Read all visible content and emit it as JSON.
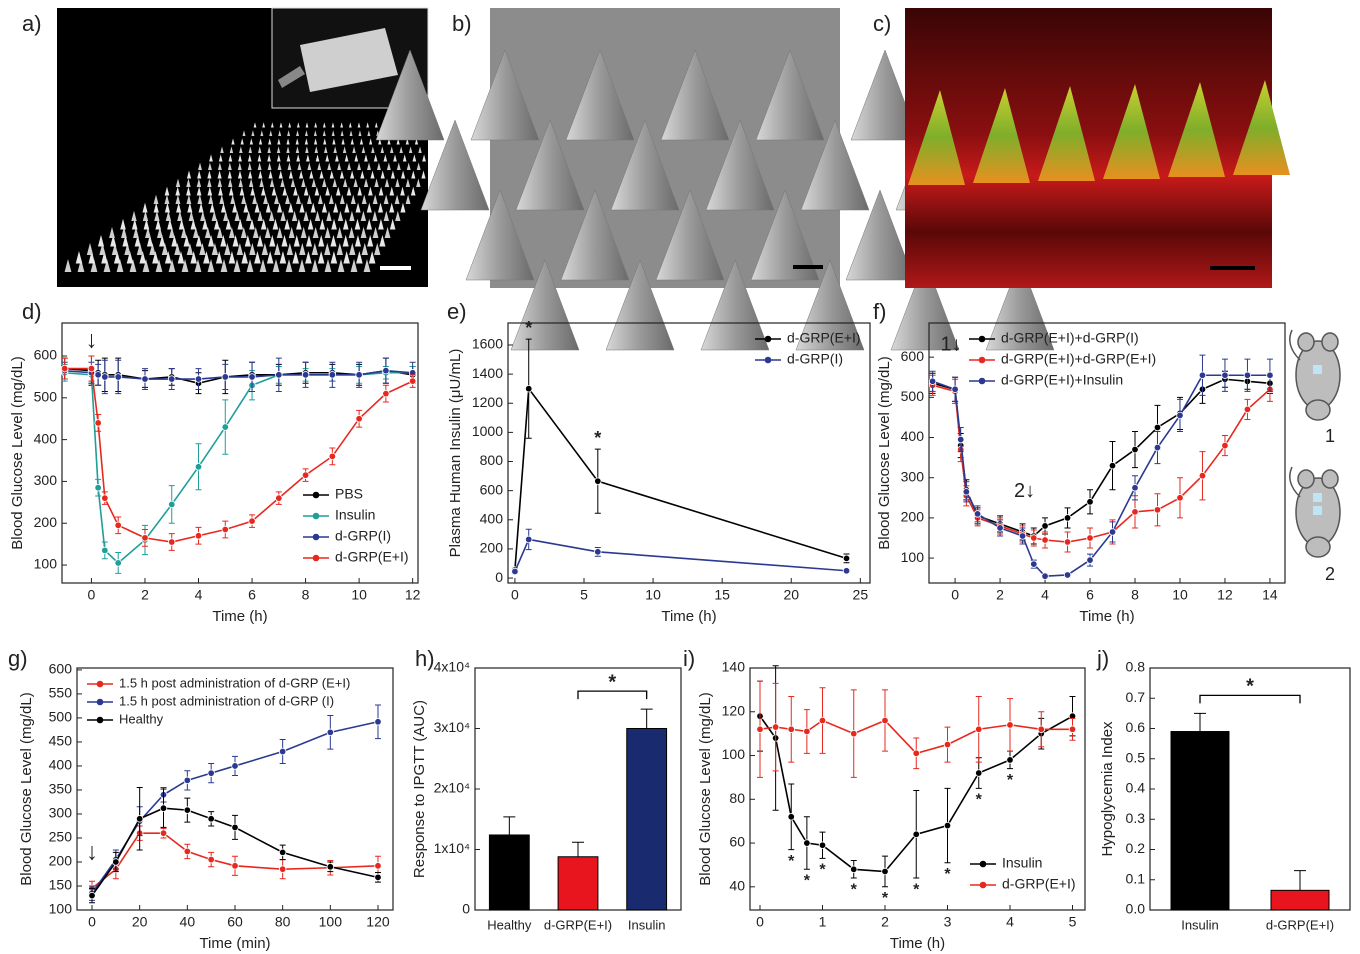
{
  "images": [
    {
      "label": "a)"
    },
    {
      "label": "b)"
    },
    {
      "label": "c)"
    }
  ],
  "chart_data": [
    {
      "type": "line",
      "panel_label": "d)",
      "x_label": "Time (h)",
      "y_label": "Blood Glucose Level (mg/dL)",
      "x": [
        -1,
        0,
        0.25,
        0.5,
        1,
        2,
        3,
        4,
        5,
        6,
        7,
        8,
        9,
        10,
        11,
        12
      ],
      "xlim": [
        -1.1,
        12.2
      ],
      "xticks": [
        0,
        2,
        4,
        6,
        8,
        10,
        12
      ],
      "ylim": [
        57,
        679
      ],
      "yticks": [
        100,
        200,
        300,
        400,
        500,
        600
      ],
      "legend": "lower right",
      "annotations": [
        "↓"
      ],
      "series": [
        {
          "name": "PBS",
          "color": "#000000",
          "values": [
            570,
            565,
            560,
            555,
            555,
            545,
            550,
            535,
            550,
            555,
            555,
            560,
            560,
            555,
            565,
            555
          ],
          "errors": [
            25,
            35,
            30,
            40,
            40,
            20,
            20,
            25,
            40,
            30,
            25,
            25,
            20,
            25,
            30,
            20
          ]
        },
        {
          "name": "Insulin",
          "color": "#1f9e9a",
          "values": [
            560,
            555,
            285,
            135,
            105,
            160,
            245,
            335,
            430,
            530,
            555,
            555,
            555,
            555,
            560,
            560
          ],
          "errors": [
            20,
            20,
            20,
            20,
            25,
            35,
            45,
            55,
            65,
            35,
            20,
            15,
            15,
            20,
            15,
            15
          ]
        },
        {
          "name": "d-GRP(I)",
          "color": "#2b3990",
          "values": [
            565,
            560,
            555,
            550,
            550,
            545,
            545,
            545,
            550,
            550,
            555,
            555,
            555,
            555,
            565,
            560
          ],
          "errors": [
            20,
            25,
            25,
            40,
            40,
            25,
            25,
            25,
            30,
            35,
            40,
            30,
            30,
            30,
            30,
            25
          ]
        },
        {
          "name": "d-GRP(E+I)",
          "color": "#e8281e",
          "values": [
            570,
            570,
            440,
            260,
            195,
            165,
            155,
            170,
            185,
            205,
            260,
            315,
            360,
            450,
            510,
            540
          ],
          "errors": [
            25,
            30,
            20,
            15,
            20,
            20,
            20,
            20,
            20,
            15,
            15,
            15,
            20,
            20,
            20,
            15
          ]
        }
      ]
    },
    {
      "type": "line",
      "panel_label": "e)",
      "x_label": "Time (h)",
      "y_label": "Plasma Human Insulin (μU/mL)",
      "x": [
        0,
        1,
        6,
        24
      ],
      "xlim": [
        -0.5,
        25.7
      ],
      "xticks": [
        0,
        5,
        10,
        15,
        20,
        25
      ],
      "ylim": [
        -34,
        1751
      ],
      "yticks": [
        0,
        200,
        400,
        600,
        800,
        1000,
        1200,
        1400,
        1600
      ],
      "legend": "upper right",
      "annotations": [
        "*",
        "*"
      ],
      "series": [
        {
          "name": "d-GRP(E+I)",
          "color": "#000000",
          "values": [
            55,
            1300,
            665,
            135
          ],
          "errors": [
            15,
            340,
            220,
            30
          ]
        },
        {
          "name": "d-GRP(I)",
          "color": "#2b3990",
          "values": [
            45,
            265,
            180,
            50
          ],
          "errors": [
            15,
            70,
            30,
            10
          ]
        }
      ]
    },
    {
      "type": "line",
      "panel_label": "f)",
      "x_label": "Time (h)",
      "y_label": "Blood Glucose Level (mg/dL)",
      "x": [
        -1,
        0,
        0.25,
        0.5,
        1,
        2,
        3,
        3.5,
        4,
        5,
        6,
        7,
        8,
        9,
        10,
        11,
        12,
        13,
        14
      ],
      "xlim": [
        -1.16,
        14.67
      ],
      "xticks": [
        0,
        2,
        4,
        6,
        8,
        10,
        12,
        14
      ],
      "ylim": [
        38,
        685
      ],
      "yticks": [
        100,
        200,
        300,
        400,
        500,
        600
      ],
      "legend": "upper center",
      "annotations": [
        "1↓",
        "2↓"
      ],
      "side_labels": [
        "1",
        "2"
      ],
      "series": [
        {
          "name": "d-GRP(E+I)+d-GRP(I)",
          "color": "#000000",
          "values": [
            535,
            520,
            380,
            270,
            205,
            185,
            165,
            155,
            180,
            200,
            240,
            330,
            370,
            425,
            460,
            520,
            545,
            540,
            535
          ],
          "errors": [
            25,
            30,
            30,
            25,
            20,
            20,
            20,
            20,
            20,
            25,
            30,
            60,
            45,
            55,
            40,
            35,
            20,
            20,
            25
          ]
        },
        {
          "name": "d-GRP(E+I)+d-GRP(E+I)",
          "color": "#e8281e",
          "values": [
            530,
            515,
            370,
            255,
            200,
            180,
            160,
            150,
            145,
            140,
            150,
            165,
            215,
            220,
            250,
            305,
            380,
            470,
            520
          ],
          "errors": [
            25,
            30,
            30,
            25,
            20,
            20,
            20,
            20,
            20,
            25,
            25,
            30,
            40,
            40,
            50,
            60,
            25,
            25,
            30
          ]
        },
        {
          "name": "d-GRP(E+I)+Insulin",
          "color": "#2b3990",
          "values": [
            540,
            520,
            395,
            265,
            210,
            175,
            155,
            85,
            55,
            58,
            95,
            165,
            275,
            375,
            455,
            555,
            555,
            555,
            555
          ],
          "errors": [
            25,
            30,
            30,
            25,
            20,
            20,
            20,
            10,
            5,
            5,
            15,
            25,
            30,
            40,
            40,
            50,
            40,
            40,
            40
          ]
        }
      ]
    },
    {
      "type": "line",
      "panel_label": "g)",
      "x_label": "Time (min)",
      "y_label": "Blood Glucose Level (mg/dL)",
      "x": [
        0,
        10,
        20,
        30,
        40,
        50,
        60,
        80,
        100,
        120
      ],
      "xlim": [
        -6.3,
        126.3
      ],
      "xticks": [
        0,
        20,
        40,
        60,
        80,
        100,
        120
      ],
      "ylim": [
        100,
        604
      ],
      "yticks": [
        100,
        150,
        200,
        250,
        300,
        350,
        400,
        450,
        500,
        550,
        600
      ],
      "legend": "upper left",
      "annotations": [
        "↓"
      ],
      "series": [
        {
          "name": "1.5 h post administration of d-GRP (E+I)",
          "color": "#e8281e",
          "values": [
            145,
            185,
            260,
            260,
            222,
            205,
            192,
            185,
            188,
            192
          ],
          "errors": [
            15,
            20,
            15,
            10,
            15,
            15,
            20,
            20,
            15,
            20
          ]
        },
        {
          "name": "1.5 h post administration of d-GRP (I)",
          "color": "#2b3990",
          "values": [
            135,
            205,
            285,
            340,
            370,
            385,
            400,
            430,
            470,
            492
          ],
          "errors": [
            15,
            20,
            30,
            15,
            20,
            20,
            20,
            25,
            35,
            35
          ]
        },
        {
          "name": "Healthy",
          "color": "#000000",
          "values": [
            130,
            200,
            290,
            312,
            308,
            290,
            272,
            220,
            190,
            168
          ],
          "errors": [
            15,
            20,
            65,
            40,
            25,
            15,
            25,
            15,
            10,
            10
          ]
        }
      ]
    },
    {
      "type": "bar",
      "panel_label": "h)",
      "y_label": "Response to IPGTT (AUC)",
      "categories": [
        "Healthy",
        "d-GRP(E+I)",
        "Insulin"
      ],
      "values": [
        12400,
        8800,
        30000
      ],
      "errors": [
        3000,
        2400,
        3200
      ],
      "colors": [
        "#000000",
        "#e8141e",
        "#1a2a6e"
      ],
      "ylim": [
        0,
        40000
      ],
      "yticks": [
        0,
        {
          "value": 10000,
          "label": "1x10⁴"
        },
        {
          "value": 20000,
          "label": "2x10⁴"
        },
        {
          "value": 30000,
          "label": "3x10⁴"
        },
        {
          "value": 40000,
          "label": "4x10⁴"
        }
      ],
      "annotations": [
        "*"
      ]
    },
    {
      "type": "line",
      "panel_label": "i)",
      "x_label": "Time (h)",
      "y_label": "Blood Glucose Level (mg/dL)",
      "x": [
        0,
        0.25,
        0.5,
        0.75,
        1,
        1.5,
        2,
        2.5,
        3,
        3.5,
        4,
        4.5,
        5
      ],
      "xlim": [
        -0.16,
        5.2
      ],
      "xticks": [
        0,
        1,
        2,
        3,
        4,
        5
      ],
      "ylim": [
        29.4,
        140
      ],
      "yticks": [
        40,
        60,
        80,
        100,
        120,
        140
      ],
      "legend": "lower right",
      "annotations": [
        "*",
        "*",
        "*",
        "*",
        "*",
        "*",
        "*",
        "*",
        "*"
      ],
      "series": [
        {
          "name": "Insulin",
          "color": "#000000",
          "values": [
            118,
            108,
            72,
            60,
            59,
            48,
            47,
            64,
            68,
            92,
            98,
            110,
            118
          ],
          "errors": [
            16,
            33,
            15,
            12,
            6,
            4,
            7,
            20,
            17,
            7,
            4,
            7,
            9
          ]
        },
        {
          "name": "d-GRP(E+I)",
          "color": "#e8281e",
          "values": [
            112,
            113,
            112,
            111,
            116,
            110,
            116,
            101,
            105,
            112,
            114,
            112,
            112
          ],
          "errors": [
            22,
            20,
            15,
            10,
            15,
            20,
            14,
            7,
            8,
            15,
            12,
            8,
            5
          ]
        }
      ]
    },
    {
      "type": "bar",
      "panel_label": "j)",
      "y_label": "Hypoglycemia Index",
      "categories": [
        "Insulin",
        "d-GRP(E+I)"
      ],
      "values": [
        0.59,
        0.065
      ],
      "errors": [
        0.06,
        0.065
      ],
      "colors": [
        "#000000",
        "#e8141e"
      ],
      "ylim": [
        0,
        0.8
      ],
      "yticks": [
        {
          "value": 0,
          "label": "0.0"
        },
        0.1,
        0.2,
        0.3,
        0.4,
        0.5,
        0.6,
        0.7,
        0.8
      ],
      "annotations": [
        "*"
      ]
    }
  ]
}
